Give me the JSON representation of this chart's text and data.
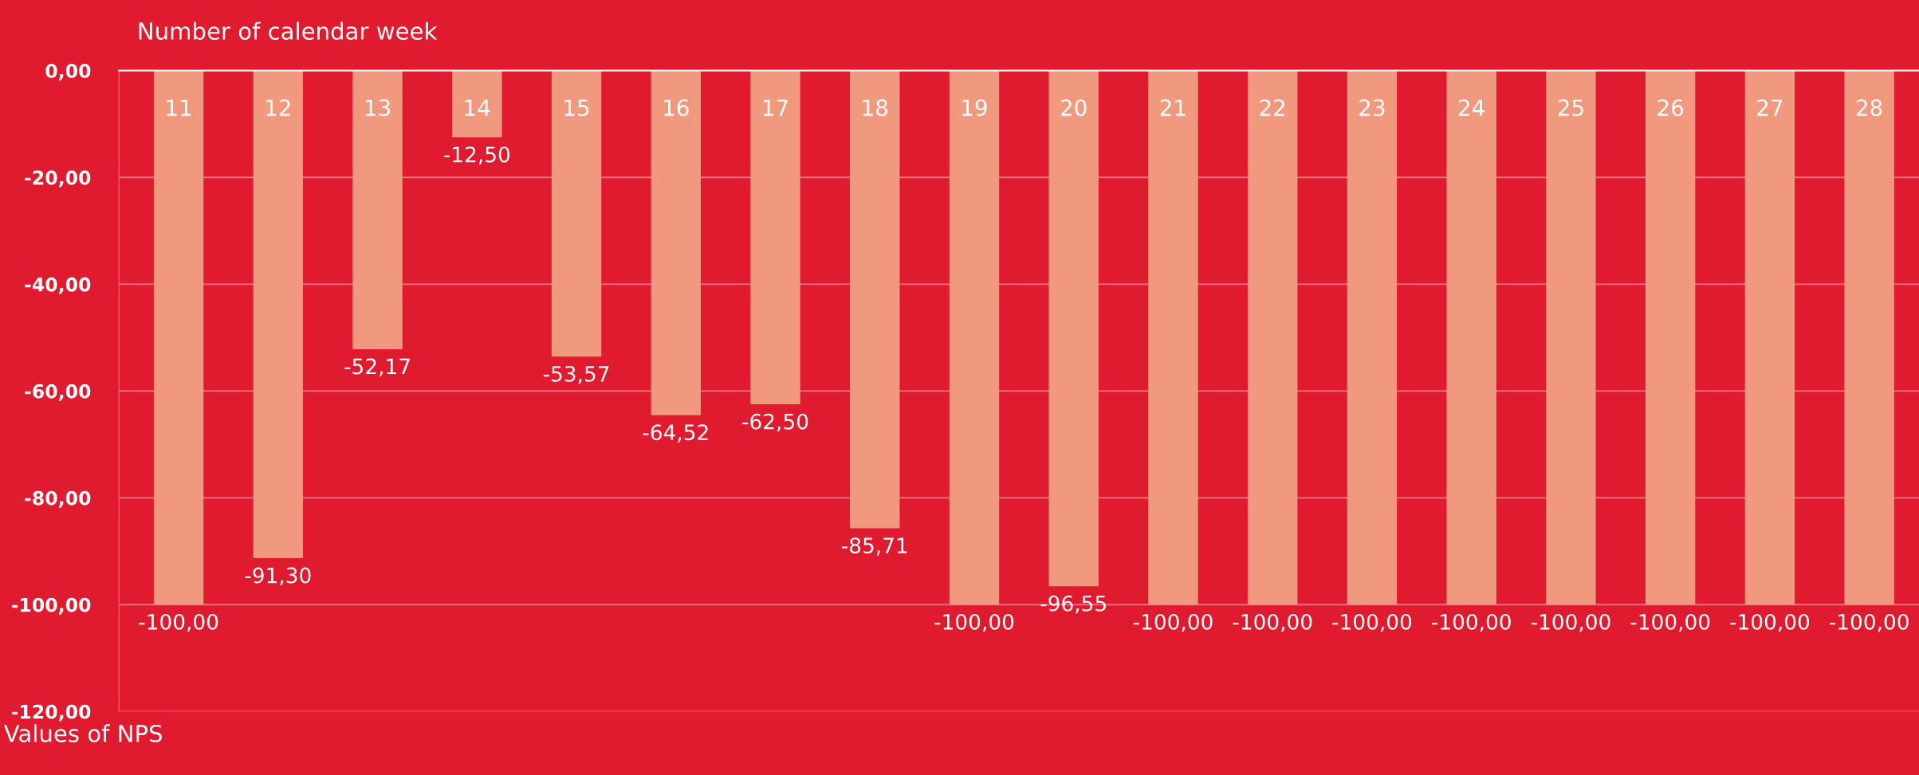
{
  "chart_data": {
    "type": "bar",
    "title": "Number of calendar week",
    "ylabel": "Values of NPS",
    "categories": [
      "11",
      "12",
      "13",
      "14",
      "15",
      "16",
      "17",
      "18",
      "19",
      "20",
      "21",
      "22",
      "23",
      "24",
      "25",
      "26",
      "27",
      "28"
    ],
    "values": [
      -100,
      -91.3,
      -52.17,
      -12.5,
      -53.57,
      -64.52,
      -62.5,
      -85.71,
      -100,
      -96.55,
      -100,
      -100,
      -100,
      -100,
      -100,
      -100,
      -100,
      -100
    ],
    "value_labels": [
      "-100,00",
      "-91,30",
      "-52,17",
      "-12,50",
      "-53,57",
      "-64,52",
      "-62,50",
      "-85,71",
      "-100,00",
      "-96,55",
      "-100,00",
      "-100,00",
      "-100,00",
      "-100,00",
      "-100,00",
      "-100,00",
      "-100,00",
      "-100,00"
    ],
    "color": "#f0997f",
    "ylim": [
      -120,
      0
    ],
    "yticks": [
      {
        "value": 0,
        "label": "0,00"
      },
      {
        "value": -20,
        "label": "-20,00"
      },
      {
        "value": -40,
        "label": "-40,00"
      },
      {
        "value": -60,
        "label": "-60,00"
      },
      {
        "value": -80,
        "label": "-80,00"
      },
      {
        "value": -100,
        "label": "-100,00"
      },
      {
        "value": -120,
        "label": "-120,00"
      }
    ],
    "grid": "y"
  }
}
